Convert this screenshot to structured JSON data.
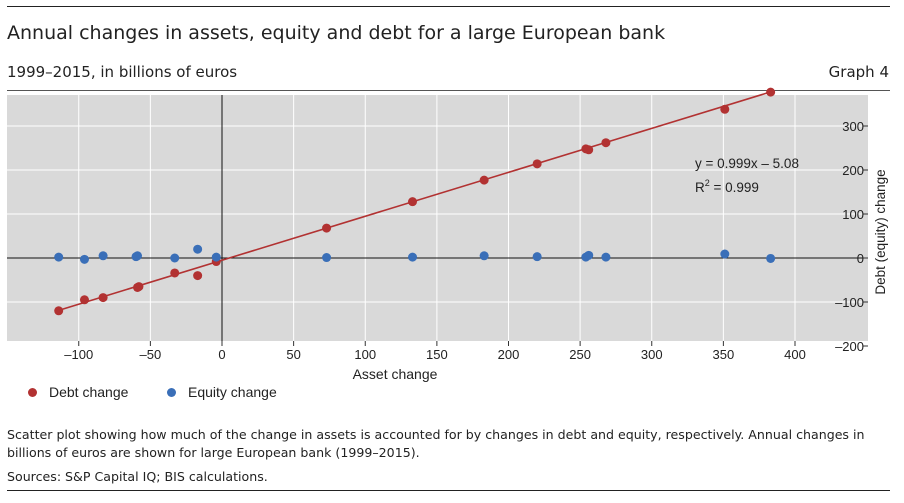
{
  "header": {
    "title": "Annual changes in assets, equity and debt for a large European bank",
    "subtitle": "1999–2015, in billions of euros",
    "graph_number": "Graph 4"
  },
  "footer": {
    "note": "Scatter plot showing how much of the change in assets is accounted for by changes in debt and equity, respectively. Annual changes in billions of euros are shown for large European bank (1999–2015).",
    "sources": "Sources: S&P Capital IQ; BIS calculations."
  },
  "colors": {
    "debt": "#b23232",
    "equity": "#3a6fb8",
    "plot_background": "#d9d9d9"
  },
  "chart_data": {
    "type": "scatter",
    "xlabel": "Asset change",
    "ylabel": "Debt (equity) change",
    "xlim": [
      -125,
      415
    ],
    "ylim": [
      -200,
      385
    ],
    "xticks": [
      -100,
      -50,
      0,
      50,
      100,
      150,
      200,
      250,
      300,
      350,
      400
    ],
    "xtick_labels": [
      "–100",
      "–50",
      "0",
      "50",
      "100",
      "150",
      "200",
      "250",
      "300",
      "350",
      "400"
    ],
    "yticks": [
      -200,
      -100,
      0,
      100,
      200,
      300
    ],
    "ytick_labels": [
      "–200",
      "–100",
      "0",
      "100",
      "200",
      "300"
    ],
    "grid": true,
    "legend_position": "bottom-left",
    "series": [
      {
        "name": "Debt change",
        "color": "#b23232",
        "points": [
          {
            "x": -114,
            "y": -120
          },
          {
            "x": -96,
            "y": -95
          },
          {
            "x": -83,
            "y": -90
          },
          {
            "x": -59,
            "y": -67
          },
          {
            "x": -58,
            "y": -65
          },
          {
            "x": -33,
            "y": -34
          },
          {
            "x": -17,
            "y": -40
          },
          {
            "x": -4,
            "y": -8
          },
          {
            "x": 73,
            "y": 68
          },
          {
            "x": 133,
            "y": 128
          },
          {
            "x": 183,
            "y": 177
          },
          {
            "x": 220,
            "y": 214
          },
          {
            "x": 254,
            "y": 248
          },
          {
            "x": 256,
            "y": 246
          },
          {
            "x": 268,
            "y": 262
          },
          {
            "x": 351,
            "y": 338
          },
          {
            "x": 383,
            "y": 377
          }
        ]
      },
      {
        "name": "Equity change",
        "color": "#3a6fb8",
        "points": [
          {
            "x": -114,
            "y": 2
          },
          {
            "x": -96,
            "y": -3
          },
          {
            "x": -83,
            "y": 5
          },
          {
            "x": -60,
            "y": 3
          },
          {
            "x": -59,
            "y": 5
          },
          {
            "x": -33,
            "y": 0
          },
          {
            "x": -17,
            "y": 20
          },
          {
            "x": -4,
            "y": 2
          },
          {
            "x": 73,
            "y": 1
          },
          {
            "x": 133,
            "y": 2
          },
          {
            "x": 183,
            "y": 5
          },
          {
            "x": 220,
            "y": 3
          },
          {
            "x": 254,
            "y": 2
          },
          {
            "x": 256,
            "y": 6
          },
          {
            "x": 268,
            "y": 2
          },
          {
            "x": 351,
            "y": 9
          },
          {
            "x": 383,
            "y": -1
          }
        ]
      }
    ],
    "regression": {
      "series": "Debt change",
      "slope": 0.999,
      "intercept": -5.08,
      "x_range": [
        -114,
        383
      ],
      "equation_label": "y = 0.999x – 5.08",
      "r2_prefix": "R",
      "r2_exponent": "2",
      "r2_value": " = 0.999"
    }
  }
}
